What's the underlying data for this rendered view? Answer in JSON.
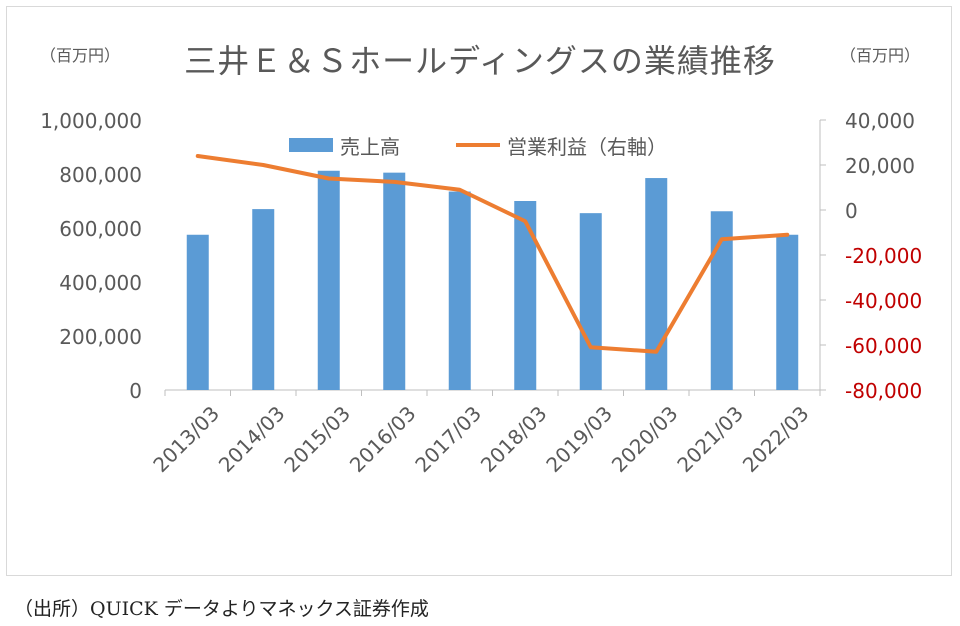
{
  "chart_data": {
    "type": "bar",
    "title": "三井Ｅ＆Ｓホールディングスの業績推移",
    "unit_left": "（百万円）",
    "unit_right": "（百万円）",
    "categories": [
      "2013/03",
      "2014/03",
      "2015/03",
      "2016/03",
      "2017/03",
      "2018/03",
      "2019/03",
      "2020/03",
      "2021/03",
      "2022/03"
    ],
    "series": [
      {
        "name": "売上高",
        "type": "bar",
        "axis": "left",
        "color": "#5b9bd5",
        "values": [
          575000,
          670000,
          812000,
          805000,
          735000,
          700000,
          655000,
          785000,
          662000,
          575000
        ]
      },
      {
        "name": "営業利益（右軸）",
        "type": "line",
        "axis": "right",
        "color": "#ed7d31",
        "values": [
          24000,
          20000,
          14000,
          12500,
          9000,
          -5000,
          -61000,
          -63000,
          -13000,
          -11000
        ]
      }
    ],
    "y_left": {
      "min": 0,
      "max": 1000000,
      "ticks": [
        "1,000,000",
        "800,000",
        "600,000",
        "400,000",
        "200,000",
        "0"
      ]
    },
    "y_right": {
      "min": -80000,
      "max": 40000,
      "ticks": [
        "40,000",
        "20,000",
        "0",
        "-20,000",
        "-40,000",
        "-60,000",
        "-80,000"
      ]
    },
    "legend": {
      "position": "top"
    },
    "grid": false
  },
  "colors": {
    "bar": "#5b9bd5",
    "line": "#ed7d31",
    "negative_tick": "#c00000",
    "text": "#595959",
    "axis": "#bfbfbf"
  },
  "source": "（出所）QUICK データよりマネックス証券作成"
}
